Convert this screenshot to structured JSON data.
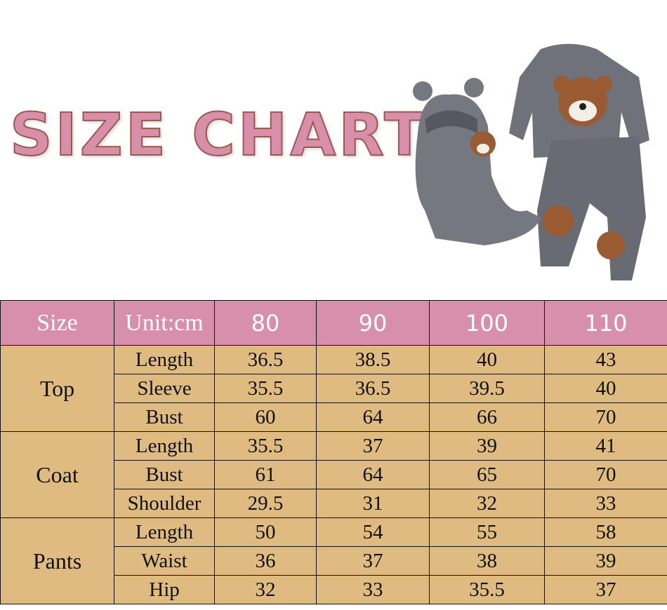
{
  "title": "SIZE CHART",
  "product_image": {
    "description_icon": "kids-bear-clothing-set",
    "colors": {
      "fabric": "#6f7278",
      "bear": "#9a5a32"
    }
  },
  "colors": {
    "header_bg": "#d88fab",
    "body_bg": "#dfbb82",
    "title": "#d98fab"
  },
  "table": {
    "headers": [
      "Size",
      "Unit:cm",
      "80",
      "90",
      "100",
      "110"
    ],
    "groups": [
      {
        "name": "Top",
        "rows": [
          {
            "label": "Length",
            "values": [
              "36.5",
              "38.5",
              "40",
              "43"
            ]
          },
          {
            "label": "Sleeve",
            "values": [
              "35.5",
              "36.5",
              "39.5",
              "40"
            ]
          },
          {
            "label": "Bust",
            "values": [
              "60",
              "64",
              "66",
              "70"
            ]
          }
        ]
      },
      {
        "name": "Coat",
        "rows": [
          {
            "label": "Length",
            "values": [
              "35.5",
              "37",
              "39",
              "41"
            ]
          },
          {
            "label": "Bust",
            "values": [
              "61",
              "64",
              "65",
              "70"
            ]
          },
          {
            "label": "Shoulder",
            "values": [
              "29.5",
              "31",
              "32",
              "33"
            ]
          }
        ]
      },
      {
        "name": "Pants",
        "rows": [
          {
            "label": "Length",
            "values": [
              "50",
              "54",
              "55",
              "58"
            ]
          },
          {
            "label": "Waist",
            "values": [
              "36",
              "37",
              "38",
              "39"
            ]
          },
          {
            "label": "Hip",
            "values": [
              "32",
              "33",
              "35.5",
              "37"
            ]
          }
        ]
      }
    ]
  }
}
